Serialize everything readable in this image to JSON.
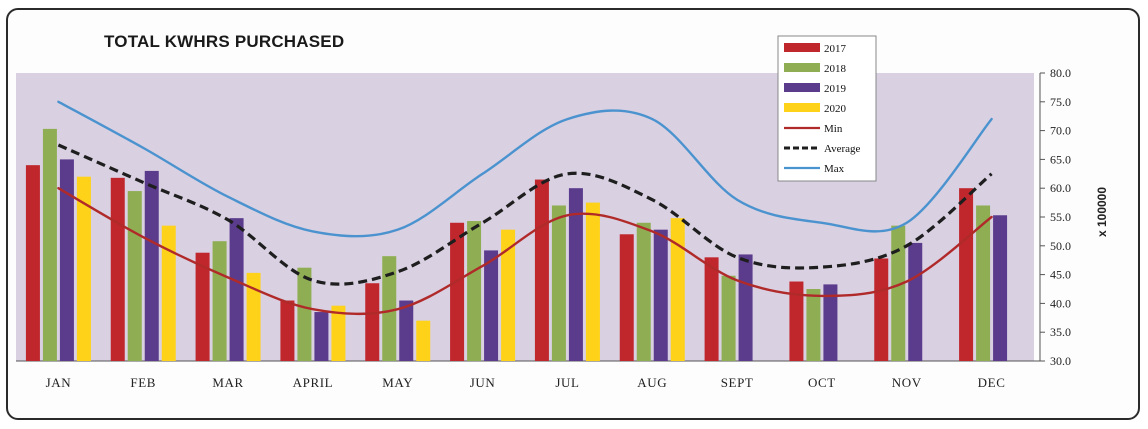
{
  "chart_data": {
    "type": "bar",
    "title": "TOTAL KWHRS PURCHASED",
    "y_unit_label": "x 100000",
    "categories": [
      "JAN",
      "FEB",
      "MAR",
      "APRIL",
      "MAY",
      "JUN",
      "JUL",
      "AUG",
      "SEPT",
      "OCT",
      "NOV",
      "DEC"
    ],
    "ylim": [
      30.0,
      80.0
    ],
    "yticks": [
      "30.0",
      "35.0",
      "40.0",
      "45.0",
      "50.0",
      "55.0",
      "60.0",
      "65.0",
      "70.0",
      "75.0",
      "80.0"
    ],
    "grid": false,
    "legend_position": "top-right",
    "bar_series": [
      {
        "name": "2017",
        "color": "#c0272d",
        "values": [
          64.0,
          61.8,
          48.8,
          40.5,
          43.5,
          54.0,
          61.5,
          52.0,
          48.0,
          43.8,
          47.8,
          60.0
        ]
      },
      {
        "name": "2018",
        "color": "#8fae53",
        "values": [
          70.3,
          59.5,
          50.8,
          46.2,
          48.2,
          54.3,
          57.0,
          54.0,
          44.8,
          42.5,
          53.5,
          57.0
        ]
      },
      {
        "name": "2019",
        "color": "#5b3b8c",
        "values": [
          65.0,
          63.0,
          54.8,
          38.5,
          40.5,
          49.2,
          60.0,
          52.8,
          48.5,
          43.3,
          50.5,
          55.3
        ]
      },
      {
        "name": "2020",
        "color": "#ffd21a",
        "values": [
          62.0,
          53.5,
          45.3,
          39.6,
          37.0,
          52.8,
          57.5,
          54.8,
          null,
          null,
          null,
          null
        ]
      }
    ],
    "line_series": [
      {
        "name": "Min",
        "color": "#b02a2a",
        "style": "solid",
        "values": [
          60.0,
          51.5,
          44.5,
          39.0,
          39.0,
          46.5,
          55.3,
          52.5,
          44.0,
          41.3,
          43.8,
          55.0
        ]
      },
      {
        "name": "Average",
        "color": "#1e1e1e",
        "style": "dashed",
        "values": [
          67.5,
          61.0,
          54.5,
          44.0,
          45.5,
          54.0,
          62.5,
          58.0,
          48.0,
          46.3,
          50.0,
          62.5
        ]
      },
      {
        "name": "Max",
        "color": "#4b93cf",
        "style": "solid",
        "values": [
          75.0,
          67.0,
          58.5,
          52.5,
          52.8,
          62.5,
          72.0,
          72.0,
          58.0,
          54.0,
          54.0,
          72.0
        ]
      }
    ]
  }
}
